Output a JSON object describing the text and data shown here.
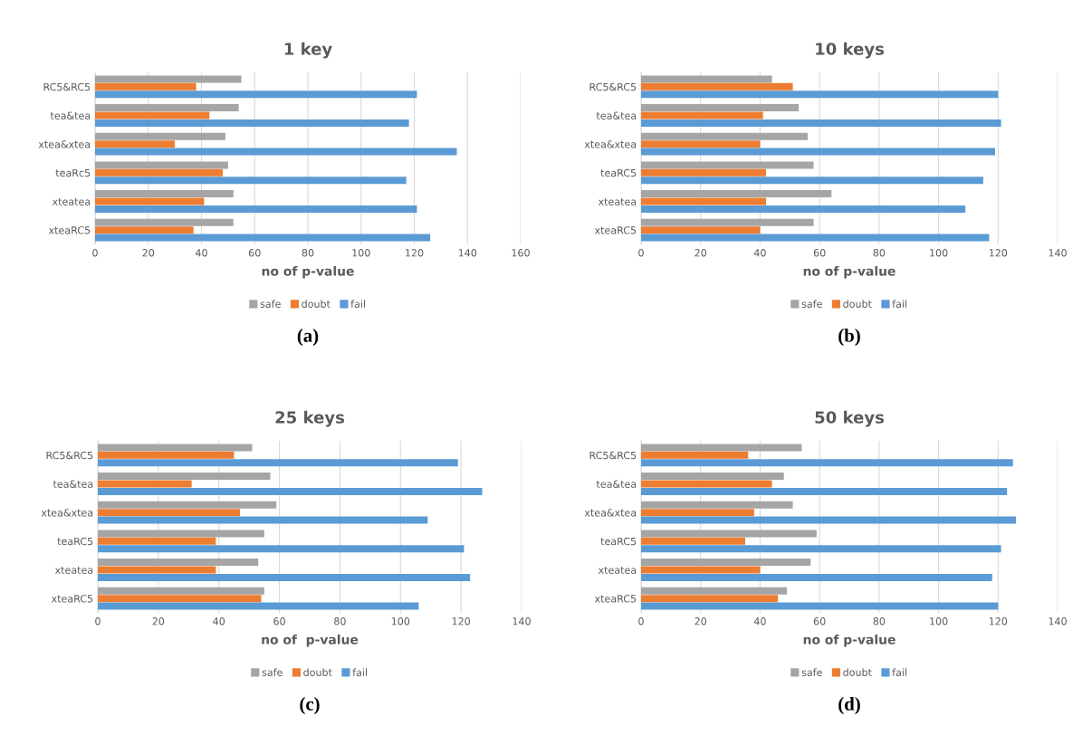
{
  "chart_data": [
    {
      "type": "bar",
      "orientation": "horizontal",
      "title": "1 key",
      "xlabel": "no of p-value",
      "categories": [
        "RC5&RC5",
        "tea&tea",
        "xtea&xtea",
        "teaRc5",
        "xteatea",
        "xteaRC5"
      ],
      "series": [
        {
          "name": "safe",
          "color": "#a5a5a5",
          "values": [
            55,
            54,
            49,
            50,
            52,
            52
          ]
        },
        {
          "name": "doubt",
          "color": "#ed7d31",
          "values": [
            38,
            43,
            30,
            48,
            41,
            37
          ]
        },
        {
          "name": "fail",
          "color": "#5b9bd5",
          "values": [
            121,
            118,
            136,
            117,
            121,
            126
          ]
        }
      ],
      "xlim": [
        0,
        160
      ],
      "xticks": [
        0,
        20,
        40,
        60,
        80,
        100,
        120,
        140,
        160
      ],
      "grid": "x",
      "legend": "bottom",
      "annotations": [
        "(a)"
      ]
    },
    {
      "type": "bar",
      "orientation": "horizontal",
      "title": "10 keys",
      "xlabel": "no of p-value",
      "categories": [
        "RC5&RC5",
        "tea&tea",
        "xtea&xtea",
        "teaRC5",
        "xteatea",
        "xteaRC5"
      ],
      "series": [
        {
          "name": "safe",
          "color": "#a5a5a5",
          "values": [
            44,
            53,
            56,
            58,
            64,
            58
          ]
        },
        {
          "name": "doubt",
          "color": "#ed7d31",
          "values": [
            51,
            41,
            40,
            42,
            42,
            40
          ]
        },
        {
          "name": "fail",
          "color": "#5b9bd5",
          "values": [
            120,
            121,
            119,
            115,
            109,
            117
          ]
        }
      ],
      "xlim": [
        0,
        140
      ],
      "xticks": [
        0,
        20,
        40,
        60,
        80,
        100,
        120,
        140
      ],
      "grid": "x",
      "legend": "bottom",
      "annotations": [
        "(b)"
      ]
    },
    {
      "type": "bar",
      "orientation": "horizontal",
      "title": "25 keys",
      "xlabel": "no of  p-value",
      "categories": [
        "RC5&RC5",
        "tea&tea",
        "xtea&xtea",
        "teaRC5",
        "xteatea",
        "xteaRC5"
      ],
      "series": [
        {
          "name": "safe",
          "color": "#a5a5a5",
          "values": [
            51,
            57,
            59,
            55,
            53,
            55
          ]
        },
        {
          "name": "doubt",
          "color": "#ed7d31",
          "values": [
            45,
            31,
            47,
            39,
            39,
            54
          ]
        },
        {
          "name": "fail",
          "color": "#5b9bd5",
          "values": [
            119,
            127,
            109,
            121,
            123,
            106
          ]
        }
      ],
      "xlim": [
        0,
        140
      ],
      "xticks": [
        0,
        20,
        40,
        60,
        80,
        100,
        120,
        140
      ],
      "grid": "x",
      "legend": "bottom",
      "annotations": [
        "(c)"
      ]
    },
    {
      "type": "bar",
      "orientation": "horizontal",
      "title": "50 keys",
      "xlabel": "no of p-value",
      "categories": [
        "RC5&RC5",
        "tea&tea",
        "xtea&xtea",
        "teaRC5",
        "xteatea",
        "xteaRC5"
      ],
      "series": [
        {
          "name": "safe",
          "color": "#a5a5a5",
          "values": [
            54,
            48,
            51,
            59,
            57,
            49
          ]
        },
        {
          "name": "doubt",
          "color": "#ed7d31",
          "values": [
            36,
            44,
            38,
            35,
            40,
            46
          ]
        },
        {
          "name": "fail",
          "color": "#5b9bd5",
          "values": [
            125,
            123,
            126,
            121,
            118,
            120
          ]
        }
      ],
      "xlim": [
        0,
        140
      ],
      "xticks": [
        0,
        20,
        40,
        60,
        80,
        100,
        120,
        140
      ],
      "grid": "x",
      "legend": "bottom",
      "annotations": [
        "(d)"
      ]
    }
  ]
}
